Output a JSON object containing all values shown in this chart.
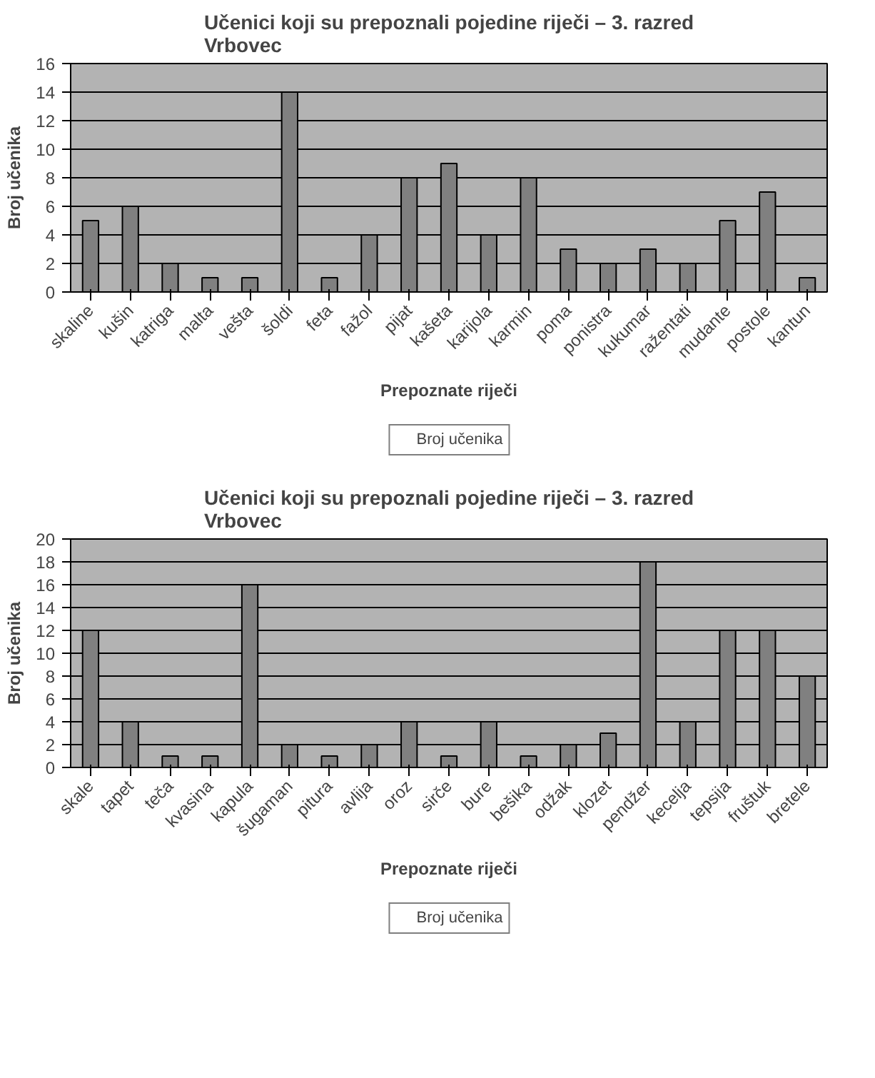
{
  "chart_data": [
    {
      "type": "bar",
      "title": "Učenici koji su prepoznali pojedine riječi – 3. razred\nVrbovec",
      "xlabel": "Prepoznate riječi",
      "ylabel": "Broj učenika",
      "categories": [
        "skaline",
        "kušin",
        "katriga",
        "malta",
        "vešta",
        "šoldi",
        "feta",
        "fažol",
        "pijat",
        "kašeta",
        "karijola",
        "karmin",
        "poma",
        "ponistra",
        "kukumar",
        "ražentati",
        "mudante",
        "postole",
        "kantun"
      ],
      "series": [
        {
          "name": "Broj učenika",
          "color": "#808080",
          "values": [
            5,
            6,
            2,
            1,
            1,
            14,
            1,
            4,
            8,
            9,
            4,
            8,
            3,
            2,
            3,
            2,
            5,
            7,
            1
          ]
        }
      ],
      "ylim": [
        0,
        16
      ],
      "yticks": [
        0,
        2,
        4,
        6,
        8,
        10,
        12,
        14,
        16
      ],
      "grid": "y",
      "legend": "bottom"
    },
    {
      "type": "bar",
      "title": "Učenici koji su prepoznali pojedine riječi – 3. razred\nVrbovec",
      "xlabel": "Prepoznate riječi",
      "ylabel": "Broj učenika",
      "categories": [
        "skale",
        "tapet",
        "teča",
        "kvasina",
        "kapula",
        "šugaman",
        "pitura",
        "avlija",
        "oroz",
        "sirče",
        "bure",
        "bešika",
        "odžak",
        "klozet",
        "pendžer",
        "kecelja",
        "tepsija",
        "fruštuk",
        "bretele"
      ],
      "series": [
        {
          "name": "Broj učenika",
          "color": "#808080",
          "values": [
            12,
            4,
            1,
            1,
            16,
            2,
            1,
            2,
            4,
            1,
            4,
            1,
            2,
            3,
            18,
            4,
            12,
            12,
            8
          ]
        }
      ],
      "ylim": [
        0,
        20
      ],
      "yticks": [
        0,
        2,
        4,
        6,
        8,
        10,
        12,
        14,
        16,
        18,
        20
      ],
      "grid": "y",
      "legend": "bottom"
    }
  ]
}
